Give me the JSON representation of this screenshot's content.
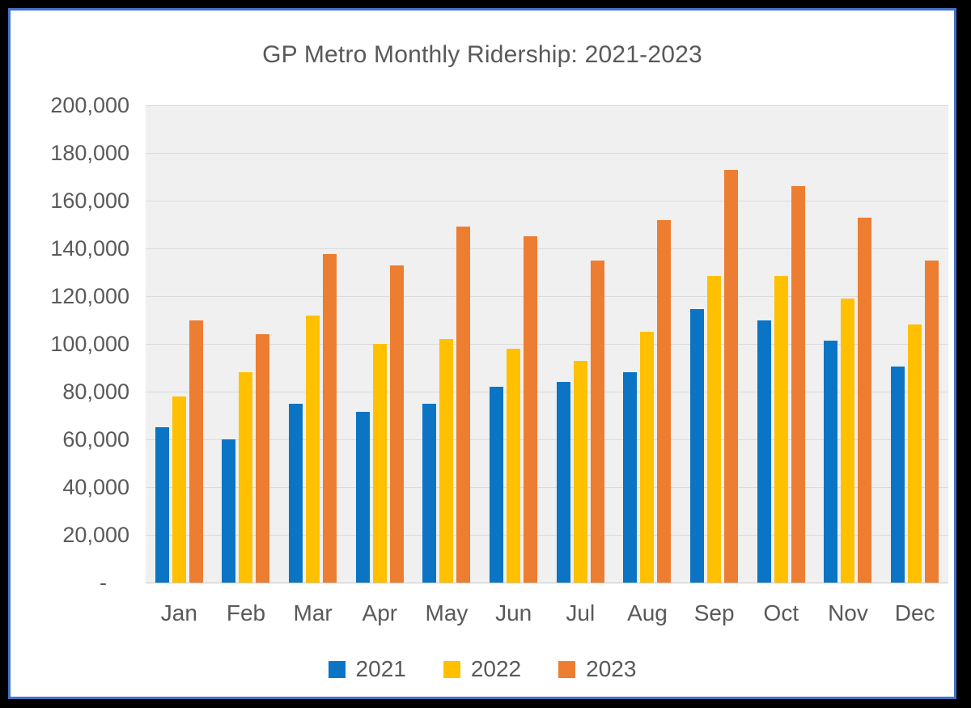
{
  "colors": {
    "series_2021": "#0B74C4",
    "series_2022": "#FFC000",
    "series_2023": "#ED7D31",
    "panel_border": "#4472C4",
    "text": "#595959",
    "plot_background": "#F0F0F0",
    "gridline": "#DBDBDB",
    "outer_background": "#000000"
  },
  "chart_data": {
    "type": "bar",
    "title": "GP Metro Monthly Ridership: 2021-2023",
    "xlabel": "",
    "ylabel": "",
    "categories": [
      "Jan",
      "Feb",
      "Mar",
      "Apr",
      "May",
      "Jun",
      "Jul",
      "Aug",
      "Sep",
      "Oct",
      "Nov",
      "Dec"
    ],
    "series": [
      {
        "name": "2021",
        "color": "#0B74C4",
        "values": [
          65000,
          60000,
          75000,
          71500,
          75000,
          82000,
          84000,
          88000,
          114500,
          110000,
          101500,
          90500
        ]
      },
      {
        "name": "2022",
        "color": "#FFC000",
        "values": [
          78000,
          88000,
          112000,
          100000,
          102000,
          98000,
          93000,
          105000,
          128500,
          128500,
          119000,
          108000
        ]
      },
      {
        "name": "2023",
        "color": "#ED7D31",
        "values": [
          110000,
          104000,
          137500,
          133000,
          149000,
          145000,
          135000,
          152000,
          173000,
          166000,
          153000,
          135000
        ]
      }
    ],
    "ylim": [
      0,
      200000
    ],
    "ytick_step": 20000,
    "ytick_labels_top_to_bottom": [
      "200,000",
      "180,000",
      "160,000",
      "140,000",
      "120,000",
      "100,000",
      "80,000",
      "60,000",
      "40,000",
      "20,000",
      "-"
    ],
    "grid": true,
    "legend_position": "bottom"
  }
}
